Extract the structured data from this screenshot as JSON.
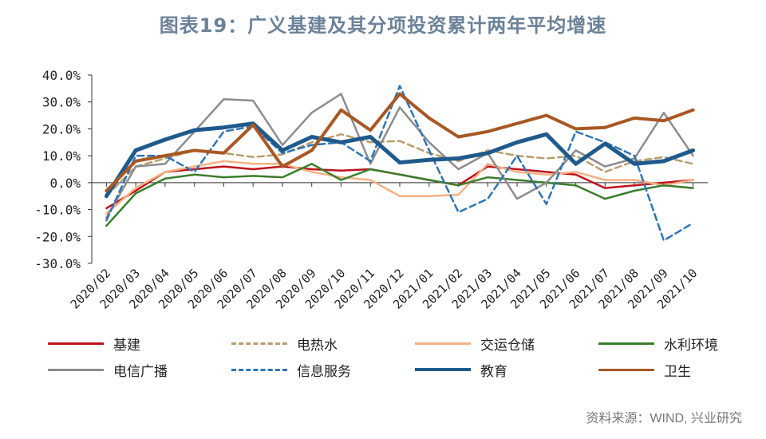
{
  "source": "资料来源：WIND, 兴业研究",
  "chart_data": {
    "type": "line",
    "title": "图表19：广义基建及其分项投资累计两年平均增速",
    "xlabel": "",
    "ylabel": "",
    "ylim": [
      -30,
      40
    ],
    "yticks": [
      "40.0%",
      "30.0%",
      "20.0%",
      "10.0%",
      "0.0%",
      "-10.0%",
      "-20.0%",
      "-30.0%"
    ],
    "grid": false,
    "legend_position": "bottom",
    "categories": [
      "2020/02",
      "2020/03",
      "2020/04",
      "2020/05",
      "2020/06",
      "2020/07",
      "2020/08",
      "2020/09",
      "2020/10",
      "2020/11",
      "2020/12",
      "2021/01",
      "2021/02",
      "2021/03",
      "2021/04",
      "2021/05",
      "2021/06",
      "2021/07",
      "2021/08",
      "2021/09",
      "2021/10"
    ],
    "series": [
      {
        "name": "基建",
        "color": "#c0121c",
        "dash": "solid",
        "width": 2.5,
        "values": [
          -9.5,
          -3,
          4,
          5,
          6,
          5,
          6,
          5,
          4.5,
          5,
          3,
          1,
          -1,
          6,
          5,
          4,
          3,
          -2,
          -1,
          0,
          1
        ]
      },
      {
        "name": "电热水",
        "color": "#b89e6b",
        "dash": "dashed",
        "width": 2.5,
        "values": [
          -5,
          6,
          9,
          12,
          11,
          9.5,
          10.5,
          15,
          18,
          15,
          15.5,
          11,
          8,
          12,
          10,
          9,
          10,
          4,
          8,
          9.5,
          7
        ]
      },
      {
        "name": "交运仓储",
        "color": "#f4b183",
        "dash": "solid",
        "width": 2.5,
        "values": [
          -11.5,
          -2,
          4,
          6,
          8,
          7,
          7,
          4,
          2,
          1,
          -5,
          -5,
          -4.5,
          7,
          4,
          3,
          4,
          1,
          1,
          -1,
          1
        ]
      },
      {
        "name": "水利环境",
        "color": "#3a7d2b",
        "dash": "solid",
        "width": 2.5,
        "values": [
          -16,
          -4,
          1.5,
          3,
          2,
          2.5,
          2,
          7,
          1,
          5,
          3,
          1,
          -1,
          2,
          1,
          0,
          -1,
          -6,
          -3,
          -1,
          -2
        ]
      },
      {
        "name": "电信广播",
        "color": "#8c8c8c",
        "dash": "solid",
        "width": 2.5,
        "values": [
          -13,
          6,
          7,
          19,
          31,
          30.5,
          14,
          26,
          33,
          7,
          28,
          15,
          5,
          11,
          -6,
          0,
          12,
          6,
          9,
          26,
          10
        ]
      },
      {
        "name": "信息服务",
        "color": "#2e75b6",
        "dash": "dashed",
        "width": 2.5,
        "values": [
          -14,
          10,
          10,
          4,
          19,
          21,
          11,
          14,
          15,
          8,
          36,
          12,
          -11,
          -6,
          10,
          -8,
          19,
          15,
          10,
          -21.5,
          -15
        ]
      },
      {
        "name": "教育",
        "color": "#1f5a8c",
        "dash": "solid",
        "width": 5,
        "values": [
          -5,
          12,
          16,
          19.5,
          20.5,
          22,
          12,
          17,
          15,
          17,
          7.5,
          8.5,
          9,
          11,
          15,
          18,
          7,
          14.5,
          7,
          8,
          12
        ]
      },
      {
        "name": "卫生",
        "color": "#a95723",
        "dash": "solid",
        "width": 4,
        "values": [
          -3,
          8,
          10,
          12,
          11,
          21.5,
          6,
          12,
          27,
          19.5,
          33,
          24,
          17,
          19,
          22,
          25,
          20,
          20.5,
          24,
          23,
          27
        ]
      }
    ]
  }
}
